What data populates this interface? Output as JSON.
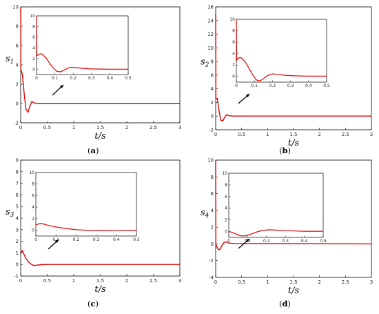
{
  "colors": {
    "series": "#e00000",
    "axis": "#000000",
    "arrow": "#000000"
  },
  "chart_data": [
    {
      "type": "line",
      "panel": "(a)",
      "caption_letter": "a",
      "xlabel": "t/s",
      "ylabel": "s1",
      "ylabel_base": "s",
      "ylabel_sub": "1",
      "xlim": [
        0,
        3
      ],
      "ylim": [
        -2,
        10
      ],
      "xticks": [
        "0",
        "0.5",
        "1",
        "1.5",
        "2",
        "2.5",
        "3"
      ],
      "yticks": [
        "-2",
        "0",
        "2",
        "4",
        "6",
        "8",
        "10"
      ],
      "series": [
        {
          "x": [
            0,
            0.004,
            0.03,
            0.07,
            0.1,
            0.14,
            0.17,
            0.21,
            0.26,
            0.35,
            3
          ],
          "y": [
            10,
            3.5,
            3.1,
            0.8,
            -0.6,
            -0.9,
            -0.3,
            0.2,
            0.05,
            0,
            0
          ]
        }
      ],
      "inset": {
        "xlim": [
          0,
          0.5
        ],
        "ylim": [
          -1,
          10
        ],
        "xticks": [
          "0",
          "0.1",
          "0.2",
          "0.3",
          "0.4",
          "0.5"
        ],
        "yticks": [
          "0",
          "2",
          "4",
          "6",
          "8",
          "10"
        ],
        "series": [
          {
            "x": [
              0,
              0.002,
              0.01,
              0.02,
              0.03,
              0.05,
              0.07,
              0.09,
              0.11,
              0.13,
              0.15,
              0.17,
              0.19,
              0.22,
              0.25,
              0.3,
              0.35,
              0.4,
              0.5
            ],
            "y": [
              10,
              2.5,
              2.7,
              2.9,
              2.85,
              2.2,
              1.2,
              0.3,
              -0.4,
              -0.5,
              -0.2,
              0.2,
              0.35,
              0.3,
              0.15,
              0.05,
              0.02,
              0,
              0
            ]
          }
        ]
      }
    },
    {
      "type": "line",
      "panel": "(b)",
      "caption_letter": "b",
      "xlabel": "t/s",
      "ylabel": "s2",
      "ylabel_base": "s",
      "ylabel_sub": "2",
      "xlim": [
        0,
        3
      ],
      "ylim": [
        -2,
        16
      ],
      "xticks": [
        "0",
        "0.5",
        "1",
        "1.5",
        "2",
        "2.5",
        "3"
      ],
      "yticks": [
        "-2",
        "0",
        "2",
        "4",
        "6",
        "8",
        "10",
        "12",
        "14",
        "16"
      ],
      "series": [
        {
          "x": [
            0,
            0.004,
            0.03,
            0.07,
            0.1,
            0.14,
            0.17,
            0.21,
            0.26,
            0.35,
            3
          ],
          "y": [
            15,
            2.5,
            2.6,
            0.5,
            -0.6,
            -0.7,
            -0.2,
            0.2,
            0.05,
            0,
            0
          ]
        }
      ],
      "inset": {
        "xlim": [
          0,
          0.5
        ],
        "ylim": [
          -1,
          10
        ],
        "xticks": [
          "0",
          "0.1",
          "0.2",
          "0.3",
          "0.4",
          "0.5"
        ],
        "yticks": [
          "0",
          "2",
          "4",
          "6",
          "8",
          "10"
        ],
        "series": [
          {
            "x": [
              0,
              0.002,
              0.01,
              0.02,
              0.03,
              0.05,
              0.07,
              0.09,
              0.11,
              0.13,
              0.15,
              0.17,
              0.2,
              0.23,
              0.27,
              0.32,
              0.4,
              0.5
            ],
            "y": [
              10,
              2.8,
              3.2,
              3.3,
              3.2,
              2.5,
              1.4,
              0.3,
              -0.6,
              -0.8,
              -0.4,
              0.1,
              0.45,
              0.35,
              0.2,
              0.1,
              0.05,
              0.05
            ]
          }
        ]
      }
    },
    {
      "type": "line",
      "panel": "(c)",
      "caption_letter": "c",
      "xlabel": "t/s",
      "ylabel": "s3",
      "ylabel_base": "s",
      "ylabel_sub": "3",
      "xlim": [
        0,
        3
      ],
      "ylim": [
        -1,
        9
      ],
      "xticks": [
        "0",
        "0.5",
        "1",
        "1.5",
        "2",
        "2.5",
        "3"
      ],
      "yticks": [
        "-1",
        "0",
        "1",
        "2",
        "3",
        "4",
        "5",
        "6",
        "7",
        "8",
        "9"
      ],
      "series": [
        {
          "x": [
            0,
            0.01,
            0.03,
            0.06,
            0.1,
            0.15,
            0.2,
            0.25,
            0.3,
            0.4,
            0.5,
            3
          ],
          "y": [
            0.9,
            1.05,
            1.2,
            0.9,
            0.5,
            0.2,
            0.02,
            -0.1,
            -0.06,
            -0.02,
            0,
            0
          ]
        }
      ],
      "inset": {
        "xlim": [
          0,
          0.5
        ],
        "ylim": [
          -1,
          10
        ],
        "xticks": [
          "0",
          "0.1",
          "0.2",
          "0.3",
          "0.4",
          "0.5"
        ],
        "yticks": [
          "0",
          "2",
          "4",
          "6",
          "8",
          "10"
        ],
        "series": [
          {
            "x": [
              0,
              0.01,
              0.02,
              0.03,
              0.05,
              0.08,
              0.12,
              0.16,
              0.2,
              0.25,
              0.3,
              0.35,
              0.4,
              0.5
            ],
            "y": [
              0.9,
              1.05,
              1.15,
              1.15,
              0.95,
              0.7,
              0.45,
              0.25,
              0.1,
              0,
              -0.05,
              -0.05,
              -0.02,
              0
            ]
          }
        ]
      }
    },
    {
      "type": "line",
      "panel": "(d)",
      "caption_letter": "d",
      "xlabel": "t/s",
      "ylabel": "s4",
      "ylabel_base": "s",
      "ylabel_sub": "4",
      "xlim": [
        0,
        3
      ],
      "ylim": [
        -4,
        10
      ],
      "xticks": [
        "0",
        "0.5",
        "1",
        "1.5",
        "2",
        "2.5",
        "3"
      ],
      "yticks": [
        "-4",
        "-2",
        "0",
        "2",
        "4",
        "6",
        "8",
        "10"
      ],
      "series": [
        {
          "x": [
            0,
            0.003,
            0.02,
            0.05,
            0.09,
            0.12,
            0.16,
            0.2,
            0.25,
            0.35,
            3
          ],
          "y": [
            10,
            0.0,
            -0.3,
            -0.7,
            -0.6,
            -0.2,
            0.15,
            0.25,
            0.1,
            0.05,
            0
          ]
        }
      ],
      "inset": {
        "xlim": [
          0,
          0.5
        ],
        "ylim": [
          -1,
          10
        ],
        "xticks": [
          "0",
          "0.1",
          "0.2",
          "0.3",
          "0.4",
          "0.5"
        ],
        "yticks": [
          "0",
          "2",
          "4",
          "6",
          "8",
          "10"
        ],
        "series": [
          {
            "x": [
              0,
              0.02,
              0.04,
              0.06,
              0.08,
              0.1,
              0.12,
              0.15,
              0.18,
              0.21,
              0.25,
              0.3,
              0.35,
              0.4,
              0.5
            ],
            "y": [
              0,
              -0.15,
              -0.45,
              -0.7,
              -0.75,
              -0.65,
              -0.4,
              -0.05,
              0.2,
              0.3,
              0.25,
              0.15,
              0.1,
              0.05,
              0.05
            ]
          }
        ]
      }
    }
  ]
}
